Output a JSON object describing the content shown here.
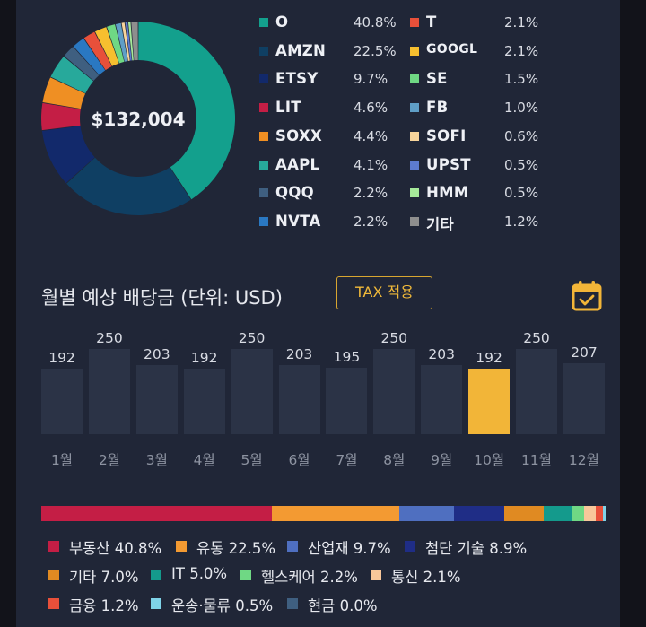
{
  "portfolio": {
    "total": "$132,004",
    "holdings": [
      {
        "name": "O",
        "pct": "40.8%",
        "value": 40.8,
        "color": "#13a08d"
      },
      {
        "name": "AMZN",
        "pct": "22.5%",
        "value": 22.5,
        "color": "#0f3f63"
      },
      {
        "name": "ETSY",
        "pct": "9.7%",
        "value": 9.7,
        "color": "#12296b"
      },
      {
        "name": "LIT",
        "pct": "4.6%",
        "value": 4.6,
        "color": "#c41e45"
      },
      {
        "name": "SOXX",
        "pct": "4.4%",
        "value": 4.4,
        "color": "#ef8f23"
      },
      {
        "name": "AAPL",
        "pct": "4.1%",
        "value": 4.1,
        "color": "#27a99b"
      },
      {
        "name": "QQQ",
        "pct": "2.2%",
        "value": 2.2,
        "color": "#3f5f80"
      },
      {
        "name": "NVTA",
        "pct": "2.2%",
        "value": 2.2,
        "color": "#2a78c2"
      },
      {
        "name": "T",
        "pct": "2.1%",
        "value": 2.1,
        "color": "#e8503a"
      },
      {
        "name": "GOOGL",
        "pct": "2.1%",
        "value": 2.1,
        "color": "#f6bf2f"
      },
      {
        "name": "SE",
        "pct": "1.5%",
        "value": 1.5,
        "color": "#6fd884"
      },
      {
        "name": "FB",
        "pct": "1.0%",
        "value": 1.0,
        "color": "#5f9ec6"
      },
      {
        "name": "SOFI",
        "pct": "0.6%",
        "value": 0.6,
        "color": "#f7d49b"
      },
      {
        "name": "UPST",
        "pct": "0.5%",
        "value": 0.5,
        "color": "#5d7bd0"
      },
      {
        "name": "HMM",
        "pct": "0.5%",
        "value": 0.5,
        "color": "#a6e99a"
      },
      {
        "name": "기타",
        "pct": "1.2%",
        "value": 1.2,
        "color": "#8e8e8e"
      }
    ]
  },
  "dividends": {
    "title": "월별 예상 배당금 (단위: USD)",
    "tax_button": "TAX 적용",
    "calendar_icon": "calendar-check-icon",
    "highlight_month": "10월",
    "months": [
      {
        "label": "1월",
        "value": 192
      },
      {
        "label": "2월",
        "value": 250
      },
      {
        "label": "3월",
        "value": 203
      },
      {
        "label": "4월",
        "value": 192
      },
      {
        "label": "5월",
        "value": 250
      },
      {
        "label": "6월",
        "value": 203
      },
      {
        "label": "7월",
        "value": 195
      },
      {
        "label": "8월",
        "value": 250
      },
      {
        "label": "9월",
        "value": 203
      },
      {
        "label": "10월",
        "value": 192
      },
      {
        "label": "11월",
        "value": 250
      },
      {
        "label": "12월",
        "value": 207
      }
    ]
  },
  "sectors": [
    {
      "name": "부동산",
      "pct": "40.8%",
      "value": 40.8,
      "color": "#c41e45"
    },
    {
      "name": "유통",
      "pct": "22.5%",
      "value": 22.5,
      "color": "#f39a32"
    },
    {
      "name": "산업재",
      "pct": "9.7%",
      "value": 9.7,
      "color": "#4f6fc0"
    },
    {
      "name": "첨단 기술",
      "pct": "8.9%",
      "value": 8.9,
      "color": "#1f2d86"
    },
    {
      "name": "기타",
      "pct": "7.0%",
      "value": 7.0,
      "color": "#e08a22"
    },
    {
      "name": "IT",
      "pct": "5.0%",
      "value": 5.0,
      "color": "#149a8c"
    },
    {
      "name": "헬스케어",
      "pct": "2.2%",
      "value": 2.2,
      "color": "#6fd884"
    },
    {
      "name": "통신",
      "pct": "2.1%",
      "value": 2.1,
      "color": "#f8c79a"
    },
    {
      "name": "금융",
      "pct": "1.2%",
      "value": 1.2,
      "color": "#e8503a"
    },
    {
      "name": "운송·물류",
      "pct": "0.5%",
      "value": 0.5,
      "color": "#7fd3e8"
    },
    {
      "name": "현금",
      "pct": "0.0%",
      "value": 0.0,
      "color": "#3f5f80"
    }
  ]
}
